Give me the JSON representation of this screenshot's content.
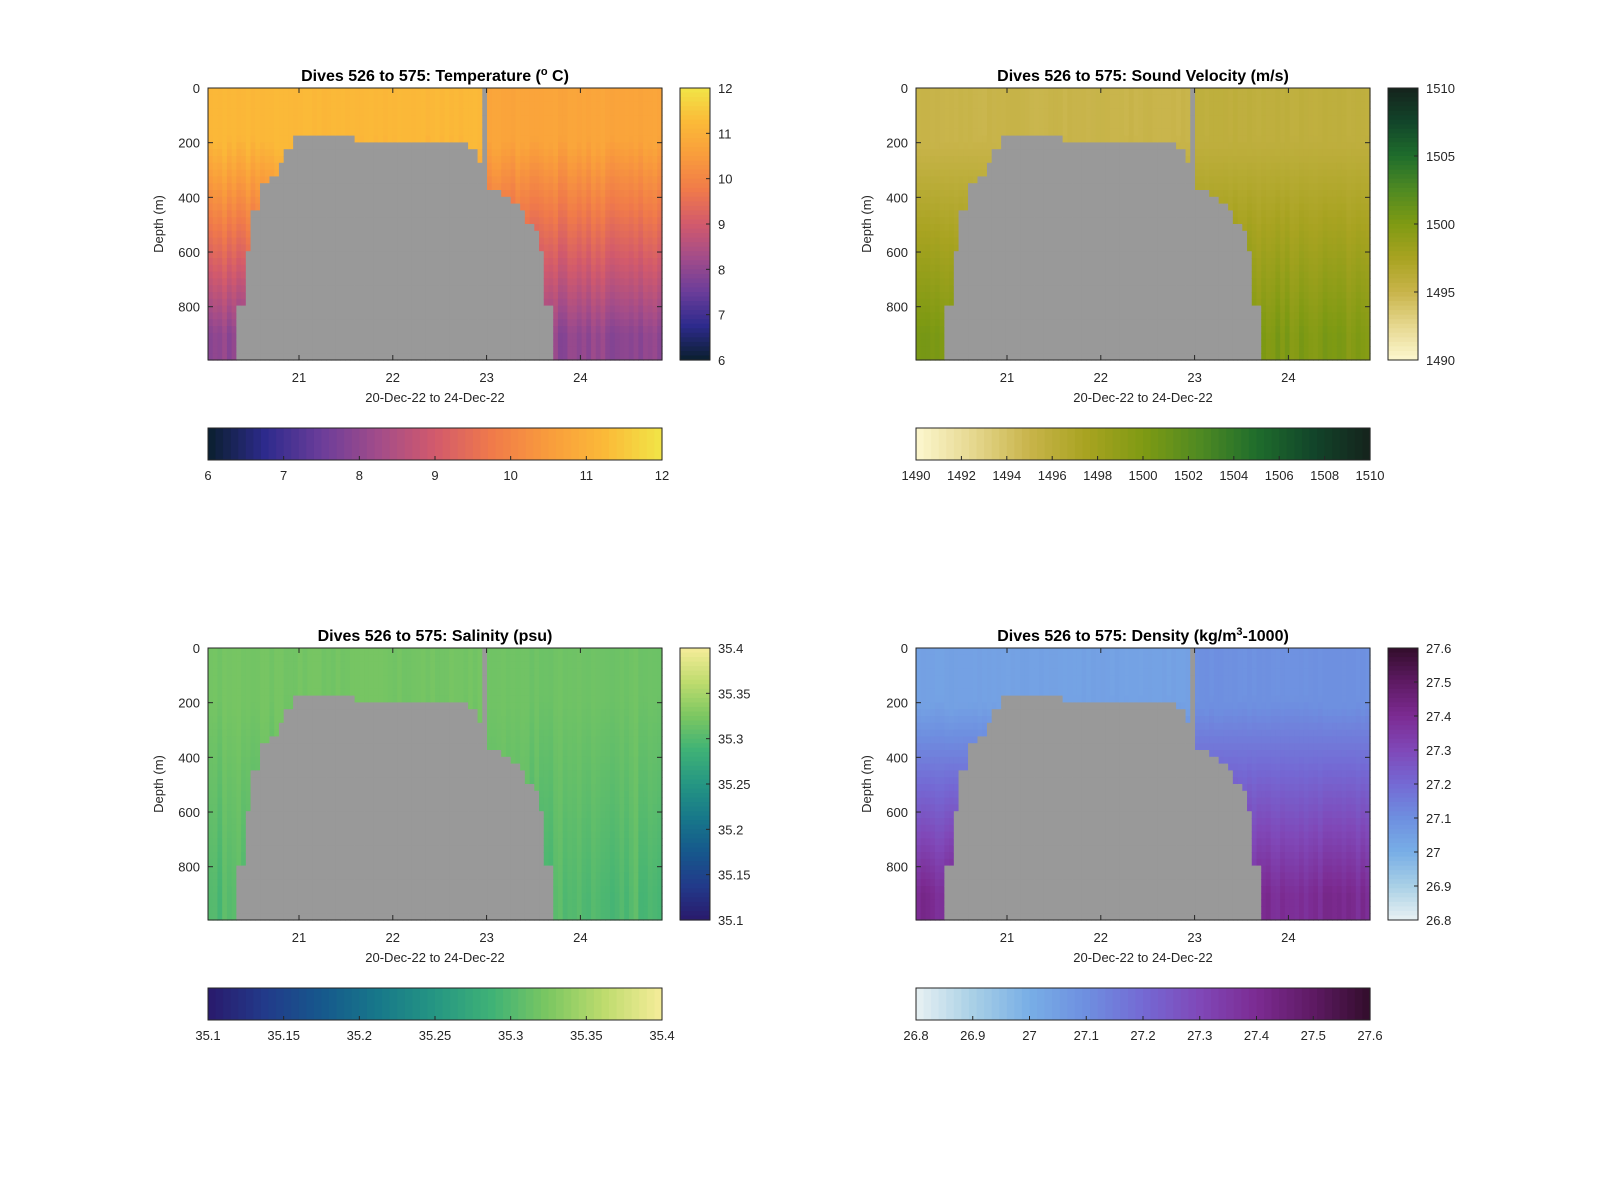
{
  "chart_data": [
    {
      "type": "heatmap",
      "title_main": "Dives 526 to 575: Temperature (",
      "title_sup": "o",
      "title_tail": " C)",
      "xlabel": "20-Dec-22 to 24-Dec-22",
      "ylabel": "Depth (m)",
      "x_ticks": [
        "21",
        "22",
        "23",
        "24"
      ],
      "y_ticks": [
        "0",
        "200",
        "400",
        "600",
        "800"
      ],
      "x_range": [
        20.03,
        24.87
      ],
      "y_range": [
        0,
        995
      ],
      "colorbar_ticks": [
        "6",
        "7",
        "8",
        "9",
        "10",
        "11",
        "12"
      ],
      "hcolorbar_ticks": [
        "6",
        "7",
        "8",
        "9",
        "10",
        "11",
        "12"
      ],
      "clim": [
        6,
        12
      ],
      "colormap": [
        "#0a1f2e",
        "#2d2a8c",
        "#6b3d9a",
        "#a24c8a",
        "#d25a6c",
        "#f07a4a",
        "#f99c3c",
        "#fbba38",
        "#f1e547"
      ],
      "surface_value": 11.2,
      "deep_value": 8.0,
      "mixed_layer_depth": 200,
      "gap_at": 22.97
    },
    {
      "type": "heatmap",
      "title_main": "Dives 526 to 575: Sound Velocity (m/s)",
      "title_sup": "",
      "title_tail": "",
      "xlabel": "20-Dec-22 to 24-Dec-22",
      "ylabel": "Depth (m)",
      "x_ticks": [
        "21",
        "22",
        "23",
        "24"
      ],
      "y_ticks": [
        "0",
        "200",
        "400",
        "600",
        "800"
      ],
      "x_range": [
        20.03,
        24.87
      ],
      "y_range": [
        0,
        995
      ],
      "colorbar_ticks": [
        "1490",
        "1495",
        "1500",
        "1505",
        "1510"
      ],
      "hcolorbar_ticks": [
        "1490",
        "1492",
        "1494",
        "1496",
        "1498",
        "1500",
        "1502",
        "1504",
        "1506",
        "1508",
        "1510"
      ],
      "clim": [
        1490,
        1510
      ],
      "colormap": [
        "#fdf7cf",
        "#e6d88f",
        "#c8b44a",
        "#a8a321",
        "#7f9a13",
        "#4f8a22",
        "#1f6d2c",
        "#12452a",
        "#15231c"
      ],
      "surface_value": 1495.0,
      "deep_value": 1500.0,
      "mixed_layer_depth": 200,
      "gap_at": 22.97
    },
    {
      "type": "heatmap",
      "title_main": "Dives 526 to 575: Salinity (psu)",
      "title_sup": "",
      "title_tail": "",
      "xlabel": "20-Dec-22 to 24-Dec-22",
      "ylabel": "Depth (m)",
      "x_ticks": [
        "21",
        "22",
        "23",
        "24"
      ],
      "y_ticks": [
        "0",
        "200",
        "400",
        "600",
        "800"
      ],
      "x_range": [
        20.03,
        24.87
      ],
      "y_range": [
        0,
        995
      ],
      "colorbar_ticks": [
        "35.1",
        "35.15",
        "35.2",
        "35.25",
        "35.3",
        "35.35",
        "35.4"
      ],
      "hcolorbar_ticks": [
        "35.1",
        "35.15",
        "35.2",
        "35.25",
        "35.3",
        "35.35",
        "35.4"
      ],
      "clim": [
        35.1,
        35.4
      ],
      "colormap": [
        "#2a1a6c",
        "#223a8a",
        "#16588c",
        "#17788a",
        "#259683",
        "#3fb276",
        "#7cc761",
        "#bfdc6e",
        "#f6ec9a"
      ],
      "surface_value": 35.32,
      "deep_value": 35.3,
      "mixed_layer_depth": 200,
      "gap_at": 22.97
    },
    {
      "type": "heatmap",
      "title_main": "Dives 526 to 575: Density (kg/m",
      "title_sup": "3",
      "title_tail": "-1000)",
      "xlabel": "20-Dec-22 to 24-Dec-22",
      "ylabel": "Depth (m)",
      "x_ticks": [
        "21",
        "22",
        "23",
        "24"
      ],
      "y_ticks": [
        "0",
        "200",
        "400",
        "600",
        "800"
      ],
      "x_range": [
        20.03,
        24.87
      ],
      "y_range": [
        0,
        995
      ],
      "colorbar_ticks": [
        "26.8",
        "26.9",
        "27",
        "27.1",
        "27.2",
        "27.3",
        "27.4",
        "27.5",
        "27.6"
      ],
      "hcolorbar_ticks": [
        "26.8",
        "26.9",
        "27",
        "27.1",
        "27.2",
        "27.3",
        "27.4",
        "27.5",
        "27.6"
      ],
      "clim": [
        26.8,
        27.6
      ],
      "colormap": [
        "#e8f1f3",
        "#a9d0e6",
        "#78aee6",
        "#6e8fe0",
        "#7469d4",
        "#8048b8",
        "#7c2b92",
        "#5e1a63",
        "#320d2b"
      ],
      "surface_value": 27.04,
      "deep_value": 27.4,
      "mixed_layer_depth": 200,
      "gap_at": 22.97
    }
  ]
}
